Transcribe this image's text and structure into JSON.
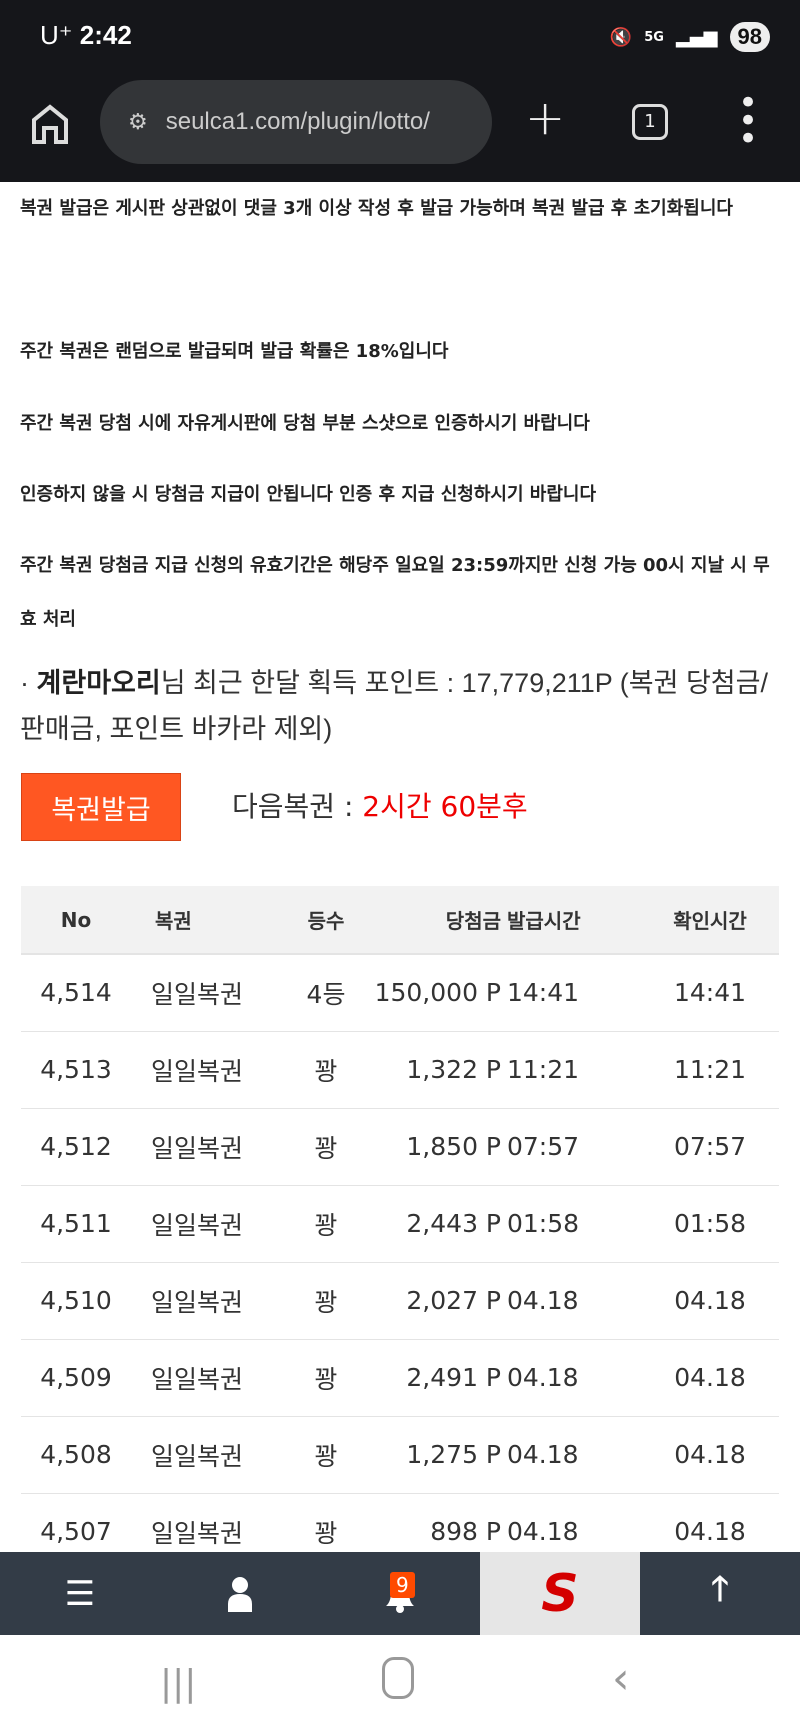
{
  "status_bar": {
    "carrier": "U⁺",
    "time": "2:42",
    "network": "5G",
    "battery": "98"
  },
  "browser": {
    "url": "seulca1.com/plugin/lotto/",
    "tab_count": "1"
  },
  "notices": [
    "복권 발급은 게시판 상관없이 댓글 3개 이상 작성 후 발급 가능하며 복권 발급 후 초기화됩니다",
    "주간 복권은 랜덤으로 발급되며 발급 확률은 18%입니다",
    "주간 복권 당첨 시에 자유게시판에 당첨 부분 스샷으로 인증하시기 바랍니다",
    "인증하지 않을 시 당첨금 지급이 안됩니다 인증 후 지급 신청하시기 바랍니다",
    "주간 복권 당첨금 지급 신청의 유효기간은 해당주 일요일 23:59까지만 신청 가능 00시 지날 시 무효 처리"
  ],
  "points": {
    "bullet": "·",
    "username": "계란마오리",
    "text": "님 최근 한달 획득 포인트 : 17,779,211P (복권 당첨금/판매금, 포인트 바카라 제외)"
  },
  "issue_button": "복권발급",
  "next": {
    "label": "다음복권 : ",
    "value": "2시간 60분후"
  },
  "table": {
    "headers": [
      "No",
      "복권",
      "등수",
      "당첨금",
      "발급시간",
      "확인시간"
    ],
    "rows": [
      [
        "4,514",
        "일일복권",
        "4등",
        "150,000 P",
        "14:41",
        "14:41"
      ],
      [
        "4,513",
        "일일복권",
        "꽝",
        "1,322 P",
        "11:21",
        "11:21"
      ],
      [
        "4,512",
        "일일복권",
        "꽝",
        "1,850 P",
        "07:57",
        "07:57"
      ],
      [
        "4,511",
        "일일복권",
        "꽝",
        "2,443 P",
        "01:58",
        "01:58"
      ],
      [
        "4,510",
        "일일복권",
        "꽝",
        "2,027 P",
        "04.18",
        "04.18"
      ],
      [
        "4,509",
        "일일복권",
        "꽝",
        "2,491 P",
        "04.18",
        "04.18"
      ],
      [
        "4,508",
        "일일복권",
        "꽝",
        "1,275 P",
        "04.18",
        "04.18"
      ],
      [
        "4,507",
        "일일복권",
        "꽝",
        "898 P",
        "04.18",
        "04.18"
      ]
    ]
  },
  "bottom_nav": {
    "notification_count": "9",
    "logo_letter": "S"
  },
  "colors": {
    "accent": "#ff5722",
    "next_time": "#e00000",
    "nav_bg": "#333c47"
  }
}
